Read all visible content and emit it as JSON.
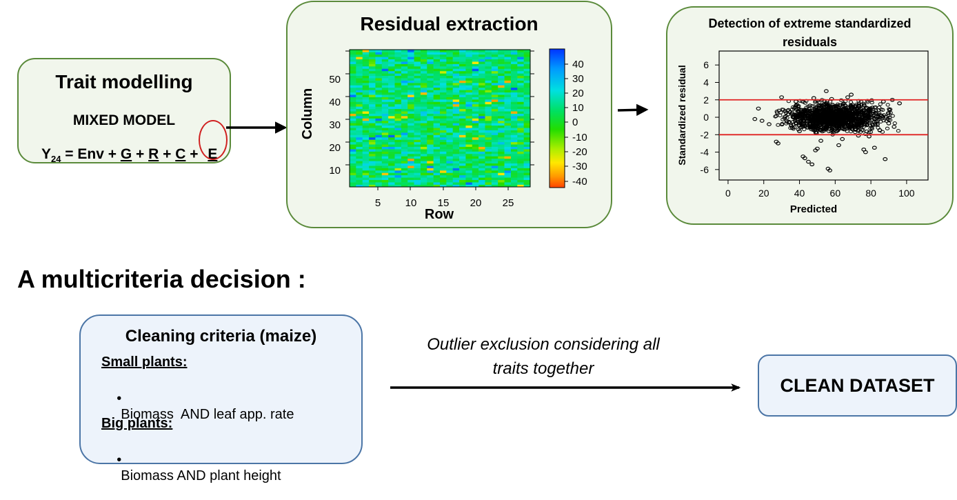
{
  "trait_box": {
    "title": "Trait modelling",
    "subtitle": "MIXED MODEL",
    "equation": {
      "y": "Y",
      "y_sub": "24",
      "eq": " = Env + ",
      "g": "G",
      "plus1": " + ",
      "r": "R",
      "plus2": " + ",
      "c": "C",
      "plus3": " + ",
      "e": "E"
    }
  },
  "residual_box": {
    "title": "Residual extraction",
    "ylabel": "Column",
    "xlabel": "Row",
    "yticks": [
      "50",
      "40",
      "30",
      "20",
      "10"
    ],
    "xticks": [
      "5",
      "10",
      "15",
      "20",
      "25"
    ],
    "colorbar_ticks": [
      "40",
      "30",
      "20",
      "10",
      "0",
      "-10",
      "-20",
      "-30",
      "-40"
    ]
  },
  "detection_box": {
    "title_line1": "Detection of extreme standardized",
    "title_line2": "residuals"
  },
  "section_heading": "A multicriteria decision :",
  "criteria_box": {
    "title": "Cleaning criteria (maize)",
    "small_heading": "Small plants:",
    "small_item": "Biomass  AND leaf app. rate",
    "big_heading": "Big plants:",
    "big_item": "Biomass AND plant height",
    "bullet": "•"
  },
  "arrow_caption_line1": "Outlier exclusion considering all",
  "arrow_caption_line2": "traits together",
  "clean_box": {
    "label": "CLEAN DATASET"
  },
  "colors": {
    "green_border": "#5a8a3a",
    "green_fill": "#f1f6ec",
    "blue_border": "#4b75a6",
    "blue_fill": "#edf3fb",
    "threshold_line": "#e02020",
    "circle": "#d02020"
  },
  "chart_data": {
    "type": "scatter",
    "title": "Detection of extreme standardized residuals",
    "xlabel": "Predicted",
    "ylabel": "Standardized residual",
    "xlim": [
      -5,
      112
    ],
    "ylim": [
      -7.2,
      7.6
    ],
    "xticks": [
      0,
      20,
      40,
      60,
      80,
      100
    ],
    "yticks": [
      6,
      4,
      2,
      0,
      -2,
      -4,
      -6
    ],
    "thresholds": [
      2,
      -2
    ],
    "outliers": [
      {
        "x": 17,
        "y": 1.0
      },
      {
        "x": 15,
        "y": -0.2
      },
      {
        "x": 19,
        "y": -0.4
      },
      {
        "x": 23,
        "y": -0.8
      },
      {
        "x": 27,
        "y": -2.8
      },
      {
        "x": 28,
        "y": -3.0
      },
      {
        "x": 30,
        "y": 2.3
      },
      {
        "x": 42,
        "y": -4.5
      },
      {
        "x": 43,
        "y": -4.7
      },
      {
        "x": 45,
        "y": -5.1
      },
      {
        "x": 47,
        "y": -5.4
      },
      {
        "x": 49,
        "y": -3.8
      },
      {
        "x": 50,
        "y": -3.6
      },
      {
        "x": 52,
        "y": -2.7
      },
      {
        "x": 55,
        "y": 3.0
      },
      {
        "x": 56,
        "y": -5.9
      },
      {
        "x": 57,
        "y": -6.1
      },
      {
        "x": 62,
        "y": -3.2
      },
      {
        "x": 64,
        "y": -2.5
      },
      {
        "x": 67,
        "y": 2.3
      },
      {
        "x": 69,
        "y": 2.6
      },
      {
        "x": 73,
        "y": -2.1
      },
      {
        "x": 76,
        "y": -3.7
      },
      {
        "x": 77,
        "y": -4.0
      },
      {
        "x": 79,
        "y": -2.2
      },
      {
        "x": 82,
        "y": -3.5
      },
      {
        "x": 87,
        "y": 1.8
      },
      {
        "x": 88,
        "y": -4.8
      },
      {
        "x": 92,
        "y": 2.0
      },
      {
        "x": 93,
        "y": -1.1
      },
      {
        "x": 96,
        "y": 1.6
      },
      {
        "x": 38,
        "y": 1.8
      },
      {
        "x": 40,
        "y": -1.6
      },
      {
        "x": 34,
        "y": -0.6
      },
      {
        "x": 32,
        "y": 0.7
      },
      {
        "x": 36,
        "y": -1.2
      },
      {
        "x": 85,
        "y": -1.5
      },
      {
        "x": 90,
        "y": -0.7
      },
      {
        "x": 58,
        "y": 2.1
      },
      {
        "x": 48,
        "y": 2.2
      }
    ],
    "cluster": {
      "x_mean": 60,
      "x_sd": 13,
      "y_sd": 0.75,
      "count": 1400,
      "x_min": 26,
      "x_max": 96
    }
  },
  "heatmap_data": {
    "type": "heatmap",
    "rows": 28,
    "columns": 58,
    "value_range": [
      -45,
      45
    ],
    "colorbar_range": [
      -45,
      45
    ]
  }
}
